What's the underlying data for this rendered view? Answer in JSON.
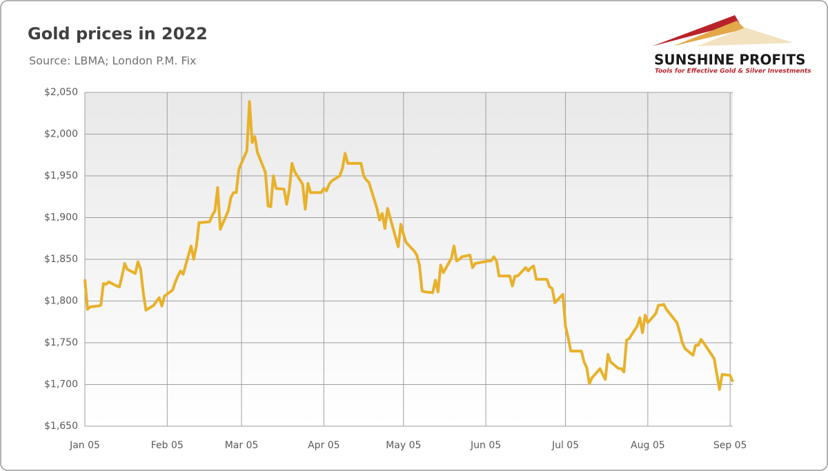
{
  "chart_data": {
    "type": "line",
    "title": "Gold prices in 2022",
    "subtitle": "Source: LBMA; London P.M. Fix",
    "logo": {
      "name": "SUNSHINE PROFITS",
      "tagline": "Tools for Effective Gold & Silver Investments"
    },
    "color": "#e8b12a",
    "grid": true,
    "xlim": [
      "Jan 05",
      "Sep 06"
    ],
    "xticks": [
      "Jan 05",
      "Feb 05",
      "Mar 05",
      "Apr 05",
      "May 05",
      "Jun 05",
      "Jul 05",
      "Aug 05",
      "Sep 05"
    ],
    "ylim": [
      1650,
      2050
    ],
    "yticks": [
      {
        "value": 1650,
        "label": "$1,650"
      },
      {
        "value": 1700,
        "label": "$1,700"
      },
      {
        "value": 1750,
        "label": "$1,750"
      },
      {
        "value": 1800,
        "label": "$1,800"
      },
      {
        "value": 1850,
        "label": "$1,850"
      },
      {
        "value": 1900,
        "label": "$1,900"
      },
      {
        "value": 1950,
        "label": "$1,950"
      },
      {
        "value": 2000,
        "label": "$2,000"
      },
      {
        "value": 2050,
        "label": "$2,050"
      }
    ],
    "x": [
      "Jan 05",
      "Jan 06",
      "Jan 07",
      "Jan 10",
      "Jan 11",
      "Jan 12",
      "Jan 13",
      "Jan 14",
      "Jan 17",
      "Jan 18",
      "Jan 19",
      "Jan 20",
      "Jan 21",
      "Jan 24",
      "Jan 25",
      "Jan 26",
      "Jan 27",
      "Jan 28",
      "Jan 31",
      "Feb 01",
      "Feb 02",
      "Feb 03",
      "Feb 04",
      "Feb 07",
      "Feb 08",
      "Feb 09",
      "Feb 10",
      "Feb 11",
      "Feb 14",
      "Feb 15",
      "Feb 16",
      "Feb 17",
      "Feb 18",
      "Feb 21",
      "Feb 22",
      "Feb 23",
      "Feb 24",
      "Feb 25",
      "Feb 28",
      "Mar 01",
      "Mar 02",
      "Mar 03",
      "Mar 04",
      "Mar 07",
      "Mar 08",
      "Mar 09",
      "Mar 10",
      "Mar 11",
      "Mar 14",
      "Mar 15",
      "Mar 16",
      "Mar 17",
      "Mar 18",
      "Mar 21",
      "Mar 22",
      "Mar 23",
      "Mar 24",
      "Mar 25",
      "Mar 28",
      "Mar 29",
      "Mar 30",
      "Mar 31",
      "Apr 01",
      "Apr 04",
      "Apr 05",
      "Apr 06",
      "Apr 07",
      "Apr 08",
      "Apr 11",
      "Apr 12",
      "Apr 13",
      "Apr 14",
      "Apr 18",
      "Apr 19",
      "Apr 20",
      "Apr 21",
      "Apr 22",
      "Apr 25",
      "Apr 26",
      "Apr 27",
      "Apr 28",
      "Apr 29",
      "May 03",
      "May 04",
      "May 05",
      "May 06",
      "May 09",
      "May 10",
      "May 11",
      "May 12",
      "May 13",
      "May 16",
      "May 17",
      "May 18",
      "May 19",
      "May 20",
      "May 23",
      "May 24",
      "May 25",
      "May 26",
      "May 27",
      "May 30",
      "May 31",
      "Jun 01",
      "Jun 06",
      "Jun 07",
      "Jun 08",
      "Jun 09",
      "Jun 10",
      "Jun 13",
      "Jun 14",
      "Jun 15",
      "Jun 16",
      "Jun 17",
      "Jun 20",
      "Jun 21",
      "Jun 22",
      "Jun 23",
      "Jun 24",
      "Jun 27",
      "Jun 28",
      "Jun 29",
      "Jun 30",
      "Jul 01",
      "Jul 04",
      "Jul 05",
      "Jul 06",
      "Jul 07",
      "Jul 08",
      "Jul 11",
      "Jul 12",
      "Jul 13",
      "Jul 14",
      "Jul 15",
      "Jul 18",
      "Jul 19",
      "Jul 20",
      "Jul 21",
      "Jul 22",
      "Jul 25",
      "Jul 26",
      "Jul 27",
      "Jul 28",
      "Jul 29",
      "Aug 01",
      "Aug 02",
      "Aug 03",
      "Aug 04",
      "Aug 05",
      "Aug 08",
      "Aug 09",
      "Aug 10",
      "Aug 11",
      "Aug 12",
      "Aug 15",
      "Aug 16",
      "Aug 17",
      "Aug 18",
      "Aug 19",
      "Aug 22",
      "Aug 23",
      "Aug 24",
      "Aug 25",
      "Aug 26",
      "Aug 30",
      "Aug 31",
      "Sep 01",
      "Sep 02",
      "Sep 05",
      "Sep 06"
    ],
    "values": [
      1826,
      1790,
      1793,
      1794,
      1795,
      1821,
      1820,
      1823,
      1818,
      1817,
      1830,
      1845,
      1838,
      1833,
      1847,
      1838,
      1810,
      1789,
      1795,
      1800,
      1804,
      1794,
      1806,
      1813,
      1822,
      1830,
      1836,
      1832,
      1866,
      1850,
      1866,
      1894,
      1894,
      1895,
      1903,
      1908,
      1936,
      1886,
      1908,
      1924,
      1930,
      1930,
      1958,
      1980,
      2039,
      1990,
      1997,
      1978,
      1954,
      1914,
      1913,
      1950,
      1935,
      1934,
      1916,
      1934,
      1965,
      1955,
      1940,
      1910,
      1941,
      1930,
      1930,
      1930,
      1935,
      1932,
      1940,
      1944,
      1950,
      1959,
      1977,
      1965,
      1965,
      1965,
      1950,
      1945,
      1942,
      1911,
      1897,
      1905,
      1887,
      1911,
      1865,
      1892,
      1880,
      1870,
      1860,
      1855,
      1843,
      1812,
      1811,
      1810,
      1825,
      1811,
      1843,
      1834,
      1851,
      1866,
      1848,
      1850,
      1853,
      1855,
      1840,
      1845,
      1848,
      1848,
      1853,
      1848,
      1830,
      1830,
      1830,
      1818,
      1830,
      1830,
      1840,
      1836,
      1840,
      1842,
      1826,
      1826,
      1826,
      1817,
      1815,
      1798,
      1808,
      1770,
      1756,
      1740,
      1740,
      1740,
      1727,
      1720,
      1701,
      1708,
      1719,
      1712,
      1706,
      1736,
      1727,
      1719,
      1719,
      1715,
      1753,
      1755,
      1770,
      1780,
      1762,
      1783,
      1774,
      1785,
      1795,
      1795,
      1796,
      1790,
      1778,
      1774,
      1763,
      1750,
      1743,
      1735,
      1747,
      1747,
      1754,
      1750,
      1731,
      1712,
      1694,
      1712,
      1711,
      1703
    ]
  }
}
